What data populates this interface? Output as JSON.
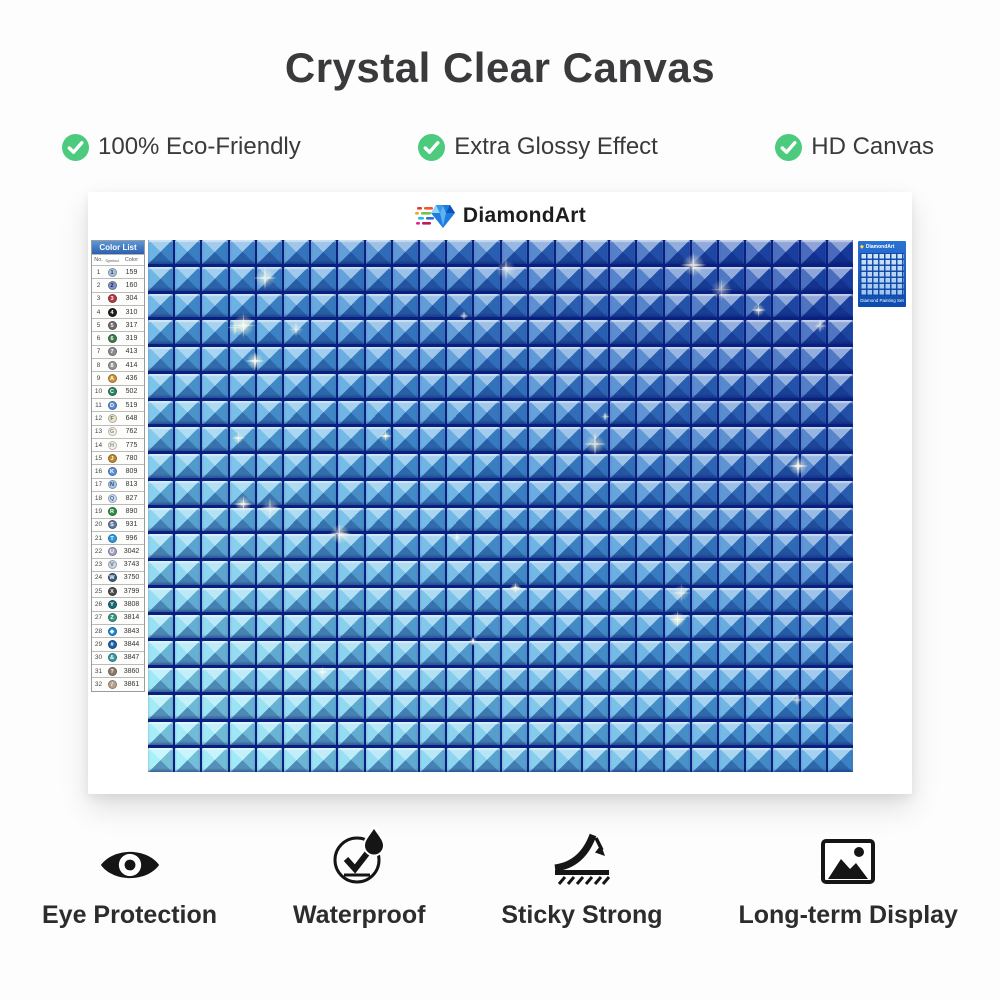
{
  "page": {
    "title": "Crystal Clear Canvas",
    "check_color": "#4ccb7e",
    "top_features": [
      {
        "label": "100% Eco-Friendly"
      },
      {
        "label": "Extra Glossy Effect"
      },
      {
        "label": "HD Canvas"
      }
    ],
    "bottom_features": [
      {
        "label": "Eye Protection",
        "icon": "eye-icon"
      },
      {
        "label": "Waterproof",
        "icon": "waterproof-icon"
      },
      {
        "label": "Sticky Strong",
        "icon": "sticky-strong-icon"
      },
      {
        "label": "Long-term Display",
        "icon": "long-term-display-icon"
      }
    ]
  },
  "sheet": {
    "brand": "DiamondArt",
    "color_list": {
      "title": "Color List",
      "headers": [
        "No.",
        "Symbol",
        "Color"
      ],
      "rows": [
        {
          "no": "1",
          "symbol": "1",
          "code": "159",
          "fill": "#a9c2de",
          "text": "#2a3550"
        },
        {
          "no": "2",
          "symbol": "2",
          "code": "160",
          "fill": "#8094c6",
          "text": "#141e46"
        },
        {
          "no": "3",
          "symbol": "3",
          "code": "304",
          "fill": "#b23a40",
          "text": "#ffffff"
        },
        {
          "no": "4",
          "symbol": "4",
          "code": "310",
          "fill": "#1e1e1e",
          "text": "#ffffff"
        },
        {
          "no": "5",
          "symbol": "5",
          "code": "317",
          "fill": "#6e6e70",
          "text": "#ffffff"
        },
        {
          "no": "6",
          "symbol": "6",
          "code": "319",
          "fill": "#3c7d4c",
          "text": "#ffffff"
        },
        {
          "no": "7",
          "symbol": "7",
          "code": "413",
          "fill": "#8d8d8f",
          "text": "#ffffff"
        },
        {
          "no": "8",
          "symbol": "8",
          "code": "414",
          "fill": "#97979b",
          "text": "#ffffff"
        },
        {
          "no": "9",
          "symbol": "A",
          "code": "436",
          "fill": "#cf9338",
          "text": "#ffffff"
        },
        {
          "no": "10",
          "symbol": "C",
          "code": "502",
          "fill": "#2f8166",
          "text": "#ffffff"
        },
        {
          "no": "11",
          "symbol": "D",
          "code": "519",
          "fill": "#5a8cd0",
          "text": "#ffffff"
        },
        {
          "no": "12",
          "symbol": "F",
          "code": "648",
          "fill": "#e9e5cc",
          "text": "#6a6a5a"
        },
        {
          "no": "13",
          "symbol": "G",
          "code": "762",
          "fill": "#f4f1e6",
          "text": "#8a8a82"
        },
        {
          "no": "14",
          "symbol": "H",
          "code": "775",
          "fill": "#f6f3ea",
          "text": "#8a8a82"
        },
        {
          "no": "15",
          "symbol": "J",
          "code": "780",
          "fill": "#bb8a2c",
          "text": "#ffffff"
        },
        {
          "no": "16",
          "symbol": "K",
          "code": "809",
          "fill": "#5d90d8",
          "text": "#ffffff"
        },
        {
          "no": "17",
          "symbol": "N",
          "code": "813",
          "fill": "#a4c6e8",
          "text": "#2c4a6e"
        },
        {
          "no": "18",
          "symbol": "Q",
          "code": "827",
          "fill": "#c9dcf0",
          "text": "#4a6a8e"
        },
        {
          "no": "19",
          "symbol": "R",
          "code": "890",
          "fill": "#2f8c44",
          "text": "#ffffff"
        },
        {
          "no": "20",
          "symbol": "S",
          "code": "931",
          "fill": "#64789e",
          "text": "#ffffff"
        },
        {
          "no": "21",
          "symbol": "T",
          "code": "996",
          "fill": "#2f9ada",
          "text": "#ffffff"
        },
        {
          "no": "22",
          "symbol": "U",
          "code": "3042",
          "fill": "#a9a0c4",
          "text": "#ffffff"
        },
        {
          "no": "23",
          "symbol": "V",
          "code": "3743",
          "fill": "#ccd5e6",
          "text": "#5a6a86"
        },
        {
          "no": "24",
          "symbol": "W",
          "code": "3750",
          "fill": "#375a7e",
          "text": "#ffffff"
        },
        {
          "no": "25",
          "symbol": "X",
          "code": "3799",
          "fill": "#4b4b4d",
          "text": "#ffffff"
        },
        {
          "no": "26",
          "symbol": "Y",
          "code": "3808",
          "fill": "#1a6a7a",
          "text": "#ffffff"
        },
        {
          "no": "27",
          "symbol": "Z",
          "code": "3814",
          "fill": "#3f9486",
          "text": "#ffffff"
        },
        {
          "no": "28",
          "symbol": "◆",
          "code": "3843",
          "fill": "#1e8ad6",
          "text": "#ffffff"
        },
        {
          "no": "29",
          "symbol": "#",
          "code": "3844",
          "fill": "#1d60aa",
          "text": "#ffffff"
        },
        {
          "no": "30",
          "symbol": "&",
          "code": "3847",
          "fill": "#3a9aa6",
          "text": "#ffffff"
        },
        {
          "no": "31",
          "symbol": "?",
          "code": "3860",
          "fill": "#8d7b6a",
          "text": "#ffffff"
        },
        {
          "no": "32",
          "symbol": "/",
          "code": "3861",
          "fill": "#b7a28e",
          "text": "#ffffff"
        }
      ]
    },
    "kit_box": {
      "brand": "DiamondArt",
      "caption": "Diamond Painting Set"
    },
    "grid": {
      "cols": 26,
      "rows": 20,
      "color_light": "#93eef8",
      "color_mid": "#49a0de",
      "color_dark": "#1c44ac",
      "line_color": "#0a2080",
      "sparkle_count": 26
    }
  }
}
